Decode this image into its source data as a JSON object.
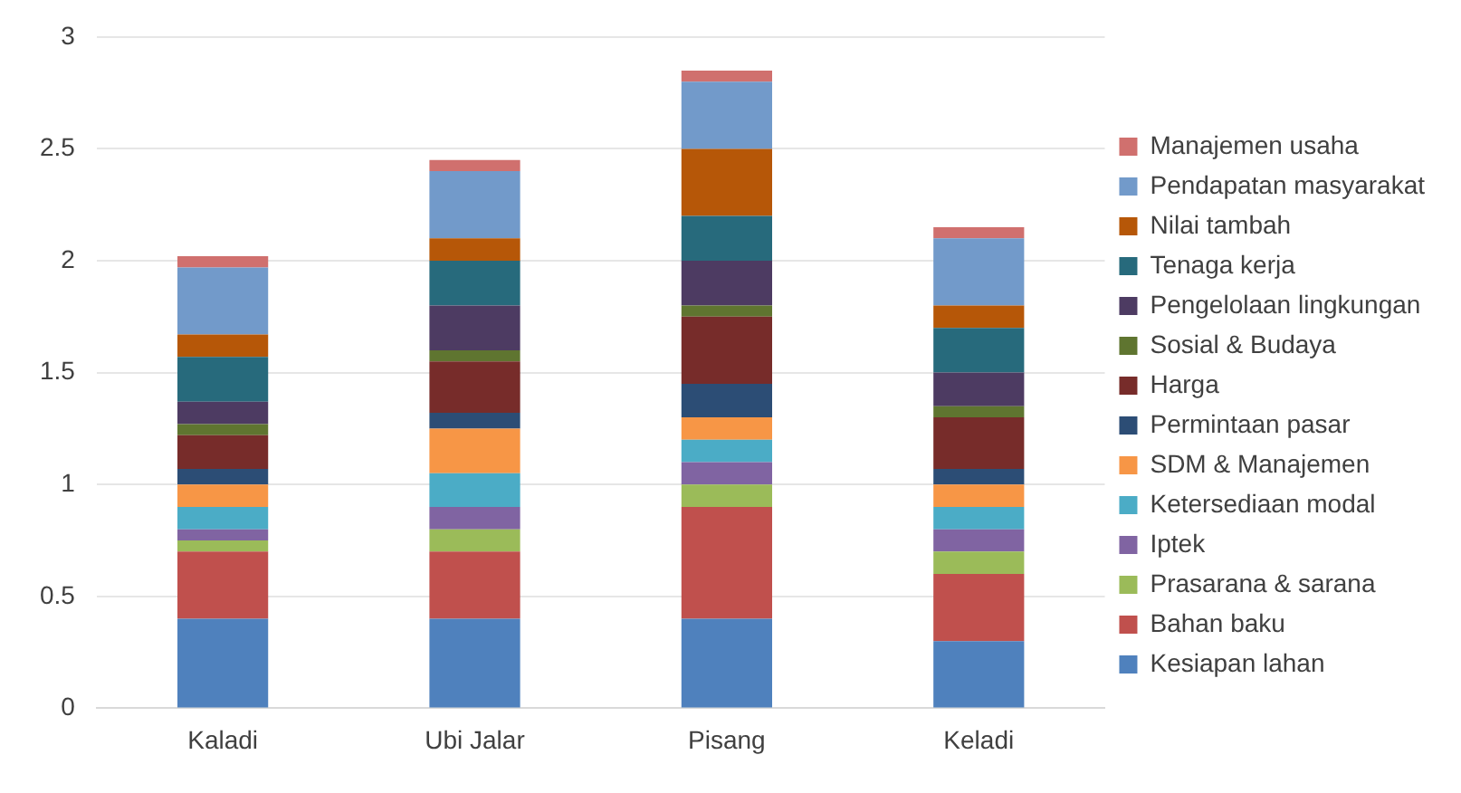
{
  "chart_data": {
    "type": "bar",
    "stacked": true,
    "categories": [
      "Kaladi",
      "Ubi Jalar",
      "Pisang",
      "Keladi"
    ],
    "series": [
      {
        "name": "Kesiapan lahan",
        "color": "#4f81bd",
        "values": [
          0.4,
          0.4,
          0.4,
          0.3
        ]
      },
      {
        "name": "Bahan baku",
        "color": "#c0504d",
        "values": [
          0.3,
          0.3,
          0.5,
          0.3
        ]
      },
      {
        "name": "Prasarana & sarana",
        "color": "#9bbb59",
        "values": [
          0.05,
          0.1,
          0.1,
          0.1
        ]
      },
      {
        "name": "Iptek",
        "color": "#8064a2",
        "values": [
          0.05,
          0.1,
          0.1,
          0.1
        ]
      },
      {
        "name": "Ketersediaan modal",
        "color": "#4bacc6",
        "values": [
          0.1,
          0.15,
          0.1,
          0.1
        ]
      },
      {
        "name": "SDM & Manajemen",
        "color": "#f79646",
        "values": [
          0.1,
          0.2,
          0.1,
          0.1
        ]
      },
      {
        "name": "Permintaan pasar",
        "color": "#2c4d75",
        "values": [
          0.07,
          0.07,
          0.15,
          0.07
        ]
      },
      {
        "name": "Harga",
        "color": "#772c2a",
        "values": [
          0.15,
          0.23,
          0.3,
          0.23
        ]
      },
      {
        "name": "Sosial & Budaya",
        "color": "#5f7530",
        "values": [
          0.05,
          0.05,
          0.05,
          0.05
        ]
      },
      {
        "name": "Pengelolaan lingkungan",
        "color": "#4d3b62",
        "values": [
          0.1,
          0.2,
          0.2,
          0.15
        ]
      },
      {
        "name": "Tenaga kerja",
        "color": "#276a7c",
        "values": [
          0.2,
          0.2,
          0.2,
          0.2
        ]
      },
      {
        "name": "Nilai tambah",
        "color": "#b65708",
        "values": [
          0.1,
          0.1,
          0.3,
          0.1
        ]
      },
      {
        "name": "Pendapatan masyarakat",
        "color": "#729aca",
        "values": [
          0.3,
          0.3,
          0.3,
          0.3
        ]
      },
      {
        "name": "Manajemen usaha",
        "color": "#d0706e",
        "values": [
          0.05,
          0.05,
          0.05,
          0.05
        ]
      }
    ],
    "ylim": [
      0,
      3
    ],
    "yticks": [
      0,
      0.5,
      1,
      1.5,
      2,
      2.5,
      3
    ],
    "grid": "y",
    "legend": "right"
  }
}
